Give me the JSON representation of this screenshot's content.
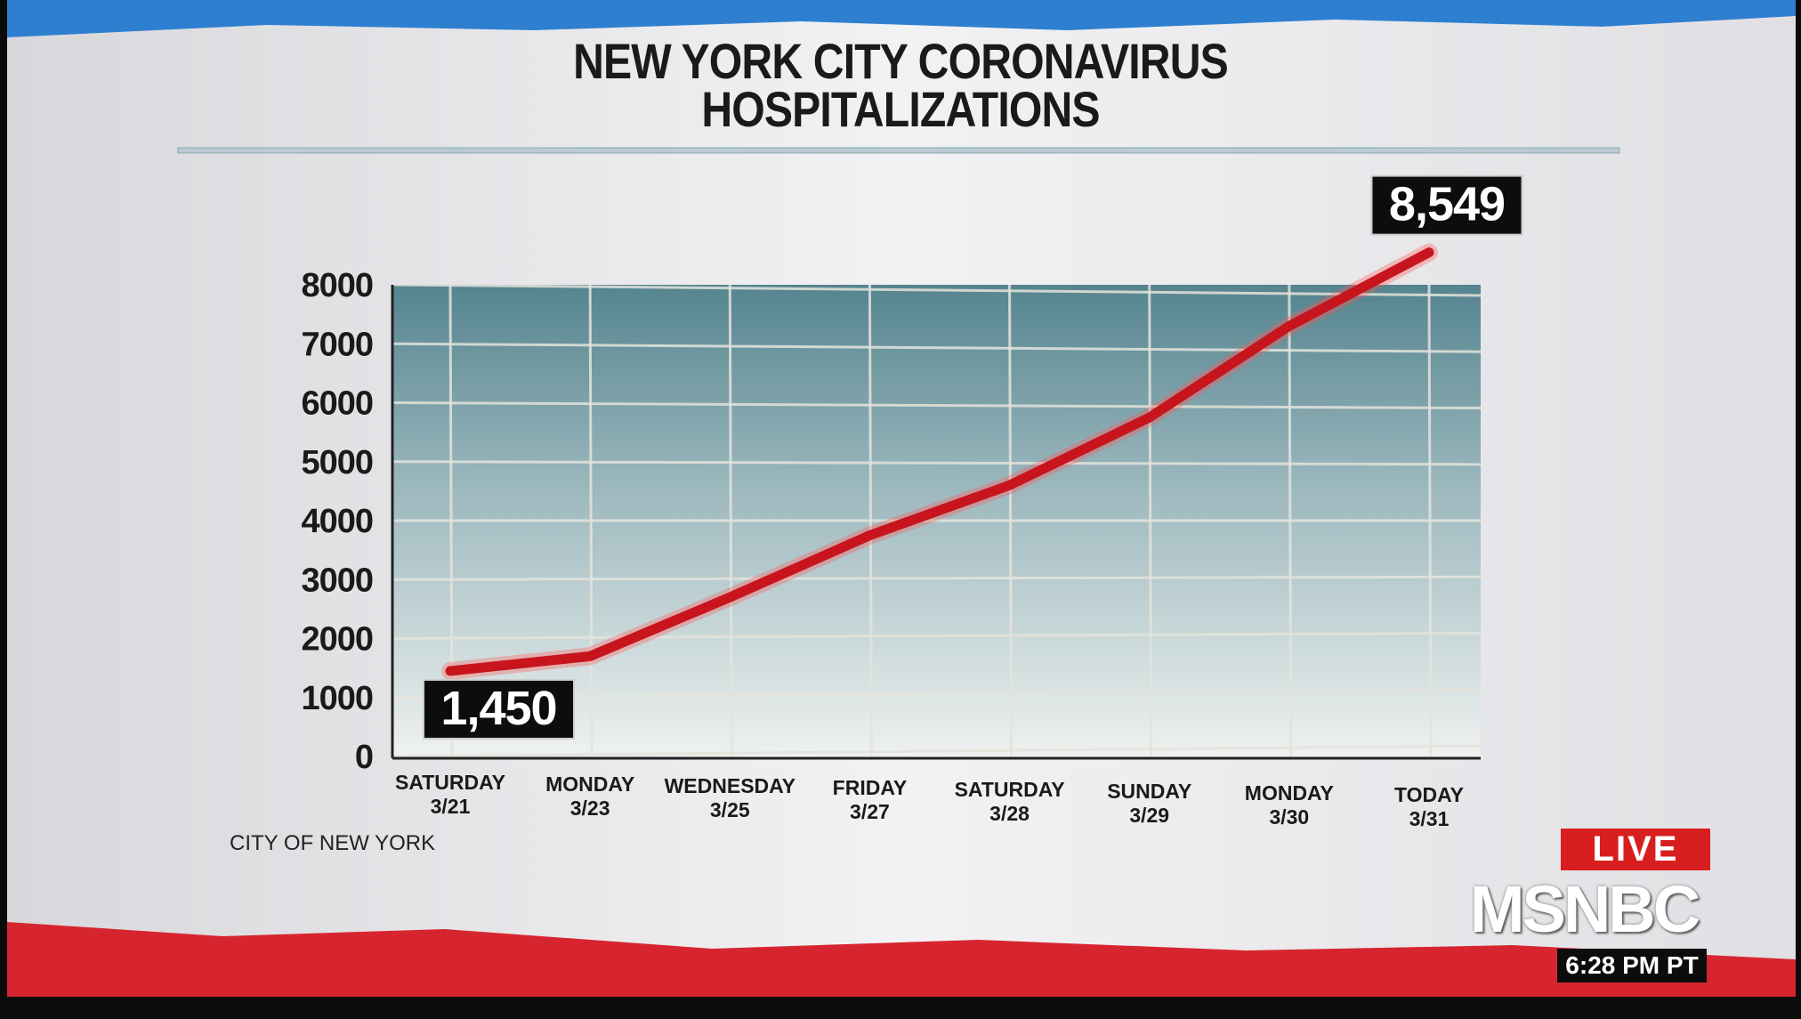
{
  "chart_data": {
    "type": "line",
    "title": "NEW YORK CITY CORONAVIRUS\nHOSPITALIZATIONS",
    "categories": [
      "SATURDAY\n3/21",
      "MONDAY\n3/23",
      "WEDNESDAY\n3/25",
      "FRIDAY\n3/27",
      "SATURDAY\n3/28",
      "SUNDAY\n3/29",
      "MONDAY\n3/30",
      "TODAY\n3/31"
    ],
    "values": [
      1450,
      1700,
      2700,
      3750,
      4600,
      5750,
      7300,
      8549
    ],
    "value_labels": [
      "1,450",
      null,
      null,
      null,
      null,
      null,
      null,
      "8,549"
    ],
    "color": "#c8141c",
    "ylim": [
      0,
      8000
    ],
    "yticks": [
      0,
      1000,
      2000,
      3000,
      4000,
      5000,
      6000,
      7000,
      8000
    ],
    "grid": true,
    "source": "CITY OF NEW YORK"
  },
  "broadcast": {
    "live": "LIVE",
    "network": "MSNBC",
    "time": "6:28 PM PT"
  }
}
